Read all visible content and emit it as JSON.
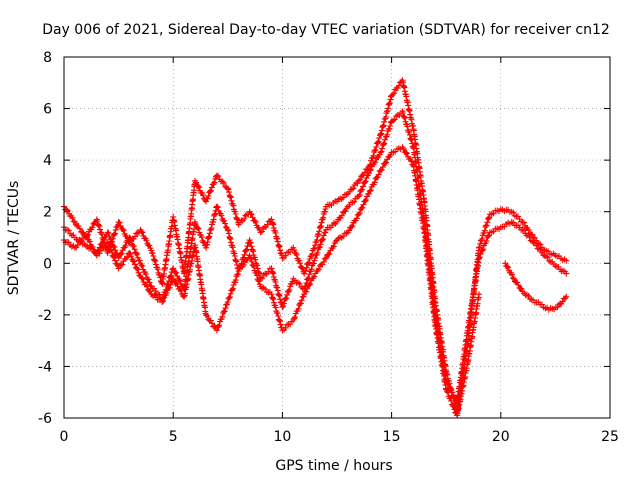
{
  "chart_data": {
    "type": "scatter",
    "title": "Day 006 of 2021, Sidereal Day-to-day VTEC variation (SDTVAR) for receiver cn12",
    "xlabel": "GPS time / hours",
    "ylabel": "SDTVAR / TECUs",
    "xlim": [
      0,
      25
    ],
    "ylim": [
      -6,
      8
    ],
    "x_ticks": [
      0,
      5,
      10,
      15,
      20,
      25
    ],
    "y_ticks": [
      -6,
      -4,
      -2,
      0,
      2,
      4,
      6,
      8
    ],
    "grid": true,
    "legend": "none",
    "marker": "+",
    "color": "#ff0000",
    "series": [
      {
        "x": [
          0.0,
          0.5,
          1.0,
          1.5,
          2.0,
          2.5,
          3.0,
          3.5,
          4.0,
          4.5,
          5.0,
          5.5,
          6.0,
          6.5,
          7.0,
          7.5,
          8.0,
          8.5,
          9.0,
          9.5,
          10.0,
          10.5,
          11.0,
          11.5,
          12.0,
          12.5,
          13.0,
          13.5,
          14.0,
          14.5,
          15.0,
          15.5,
          16.0,
          16.5,
          17.0,
          17.5,
          18.0,
          18.5,
          19.0,
          19.5,
          20.0,
          20.5,
          21.0,
          21.5,
          22.0,
          22.5,
          23.0
        ],
        "values": [
          2.2,
          1.6,
          1.0,
          1.7,
          0.4,
          1.6,
          0.8,
          1.3,
          0.5,
          -0.8,
          1.8,
          -0.4,
          3.2,
          2.4,
          3.4,
          2.9,
          1.5,
          2.0,
          1.2,
          1.7,
          0.2,
          0.6,
          -0.4,
          0.7,
          2.2,
          2.4,
          2.7,
          3.2,
          3.8,
          5.0,
          6.5,
          7.1,
          5.2,
          2.4,
          -1.5,
          -4.2,
          -5.8,
          -3.0,
          0.6,
          1.9,
          2.1,
          2.0,
          1.6,
          1.0,
          0.5,
          0.3,
          0.1
        ]
      },
      {
        "x": [
          0.0,
          0.5,
          1.0,
          1.5,
          2.0,
          2.5,
          3.0,
          3.5,
          4.0,
          4.5,
          5.0,
          5.5,
          6.0,
          6.5,
          7.0,
          7.5,
          8.0,
          8.5,
          9.0,
          9.5,
          10.0,
          10.5,
          11.0,
          11.5,
          12.0,
          12.5,
          13.0,
          13.5,
          14.0,
          14.5,
          15.0,
          15.5,
          16.0,
          16.5,
          17.0,
          17.5,
          18.0,
          18.5,
          19.0,
          19.5,
          20.0,
          20.5,
          21.0,
          21.5,
          22.0,
          22.5,
          23.0
        ],
        "values": [
          1.4,
          1.0,
          0.7,
          0.4,
          1.2,
          0.2,
          1.0,
          0.0,
          -0.9,
          -1.4,
          -0.2,
          -1.0,
          1.6,
          0.6,
          2.2,
          1.3,
          -0.3,
          0.9,
          -0.6,
          -0.2,
          -1.7,
          -0.6,
          -1.0,
          0.2,
          1.3,
          1.6,
          2.2,
          2.6,
          3.6,
          4.3,
          5.5,
          5.9,
          4.5,
          1.6,
          -2.0,
          -4.6,
          -5.4,
          -2.5,
          0.2,
          1.2,
          1.4,
          1.6,
          1.3,
          0.8,
          0.3,
          -0.1,
          -0.4
        ]
      },
      {
        "x": [
          0.0,
          0.5,
          1.0,
          1.5,
          2.0,
          2.5,
          3.0,
          3.5,
          4.0,
          4.5,
          5.0,
          5.5,
          6.0,
          6.5,
          7.0,
          7.5,
          8.0,
          8.5,
          9.0,
          9.5,
          10.0,
          10.5,
          11.0,
          11.5,
          12.0,
          12.5,
          13.0,
          13.5,
          14.0,
          14.5,
          15.0,
          15.5,
          16.0,
          16.5,
          17.0,
          17.5,
          18.0,
          18.5,
          19.0
        ],
        "values": [
          0.9,
          0.6,
          1.1,
          0.3,
          0.8,
          -0.2,
          0.4,
          -0.5,
          -1.2,
          -1.5,
          -0.6,
          -1.3,
          0.7,
          -2.0,
          -2.6,
          -1.5,
          -0.3,
          0.3,
          -0.9,
          -1.2,
          -2.6,
          -2.2,
          -1.2,
          -0.4,
          0.2,
          0.9,
          1.2,
          1.9,
          2.8,
          3.6,
          4.3,
          4.5,
          3.8,
          1.2,
          -2.4,
          -4.9,
          -5.9,
          -3.8,
          -1.2
        ]
      },
      {
        "x": [
          20.2,
          20.6,
          21.0,
          21.4,
          21.8,
          22.2,
          22.6,
          23.0
        ],
        "values": [
          0.0,
          -0.6,
          -1.1,
          -1.4,
          -1.6,
          -1.8,
          -1.7,
          -1.3
        ]
      }
    ]
  }
}
